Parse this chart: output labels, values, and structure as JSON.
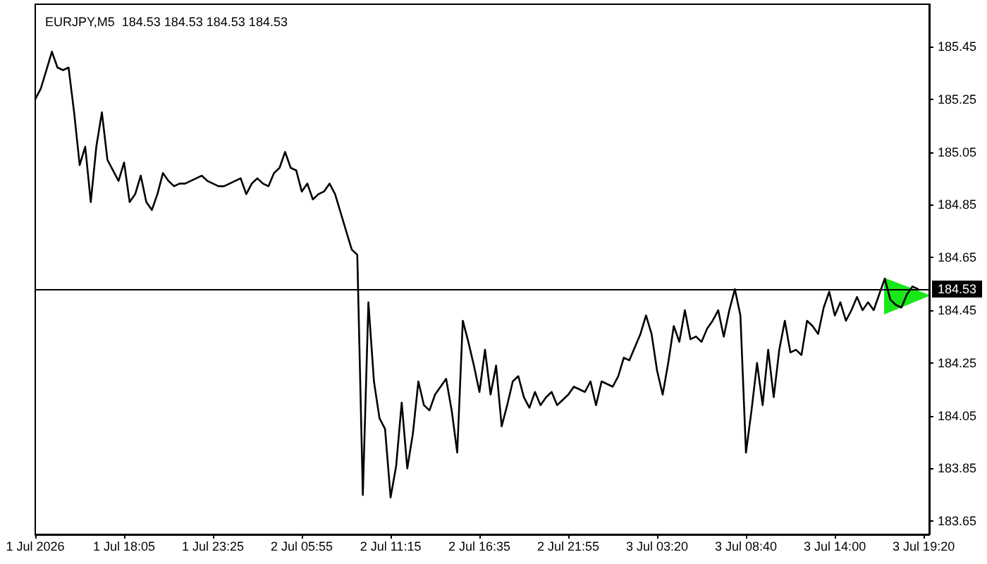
{
  "chart_data": {
    "type": "line",
    "title": "EURJPY,M5  184.53 184.53 184.53 184.53",
    "categories": [
      "1 Jul 2026",
      null,
      null,
      null,
      null,
      null,
      null,
      null,
      null,
      null,
      null,
      null,
      null,
      null,
      null,
      null,
      "1 Jul 18:05",
      null,
      null,
      null,
      null,
      null,
      null,
      null,
      null,
      null,
      null,
      null,
      null,
      null,
      null,
      null,
      "1 Jul 23:25",
      null,
      null,
      null,
      null,
      null,
      null,
      null,
      null,
      null,
      null,
      null,
      null,
      null,
      null,
      null,
      "2 Jul 05:55",
      null,
      null,
      null,
      null,
      null,
      null,
      null,
      null,
      null,
      null,
      null,
      null,
      null,
      null,
      null,
      "2 Jul 11:15",
      null,
      null,
      null,
      null,
      null,
      null,
      null,
      null,
      null,
      null,
      null,
      null,
      null,
      null,
      null,
      "2 Jul 16:35",
      null,
      null,
      null,
      null,
      null,
      null,
      null,
      null,
      null,
      null,
      null,
      null,
      null,
      null,
      null,
      "2 Jul 21:55",
      null,
      null,
      null,
      null,
      null,
      null,
      null,
      null,
      null,
      null,
      null,
      null,
      null,
      null,
      null,
      "3 Jul 03:20",
      null,
      null,
      null,
      null,
      null,
      null,
      null,
      null,
      null,
      null,
      null,
      null,
      null,
      null,
      null,
      "3 Jul 08:40",
      null,
      null,
      null,
      null,
      null,
      null,
      null,
      null,
      null,
      null,
      null,
      null,
      null,
      null,
      null,
      "3 Jul 14:00",
      null,
      null,
      null,
      null,
      null,
      null,
      null,
      null,
      null,
      null,
      null,
      null,
      null,
      null,
      null,
      "3 Jul 19:20",
      null
    ],
    "values": [
      185.25,
      185.29,
      185.36,
      185.43,
      185.37,
      185.36,
      185.37,
      185.2,
      185.0,
      185.07,
      184.86,
      185.07,
      185.2,
      185.02,
      184.98,
      184.94,
      185.01,
      184.86,
      184.89,
      184.96,
      184.86,
      184.83,
      184.89,
      184.97,
      184.94,
      184.92,
      184.93,
      184.93,
      184.94,
      184.95,
      184.96,
      184.94,
      184.93,
      184.92,
      184.92,
      184.93,
      184.94,
      184.95,
      184.89,
      184.93,
      184.95,
      184.93,
      184.92,
      184.97,
      184.99,
      185.05,
      184.99,
      184.98,
      184.9,
      184.93,
      184.87,
      184.89,
      184.9,
      184.93,
      184.89,
      184.82,
      184.75,
      184.68,
      184.66,
      183.75,
      184.48,
      184.18,
      184.04,
      184.0,
      183.74,
      183.86,
      184.1,
      183.85,
      183.98,
      184.18,
      184.09,
      184.07,
      184.13,
      184.16,
      184.19,
      184.07,
      183.91,
      184.41,
      184.33,
      184.24,
      184.14,
      184.3,
      184.13,
      184.24,
      184.01,
      184.09,
      184.18,
      184.2,
      184.12,
      184.08,
      184.14,
      184.09,
      184.12,
      184.14,
      184.09,
      184.11,
      184.13,
      184.16,
      184.15,
      184.14,
      184.18,
      184.09,
      184.18,
      184.17,
      184.16,
      184.2,
      184.27,
      184.26,
      184.31,
      184.36,
      184.43,
      184.36,
      184.22,
      184.13,
      184.25,
      184.39,
      184.33,
      184.45,
      184.34,
      184.35,
      184.33,
      184.38,
      184.41,
      184.45,
      184.35,
      184.45,
      184.53,
      184.43,
      183.91,
      184.07,
      184.25,
      184.09,
      184.3,
      184.12,
      184.3,
      184.41,
      184.29,
      184.3,
      184.28,
      184.41,
      184.39,
      184.36,
      184.46,
      184.52,
      184.43,
      184.48,
      184.41,
      184.45,
      184.5,
      184.45,
      184.48,
      184.45,
      184.51,
      184.57,
      184.49,
      184.47,
      184.46,
      184.51,
      184.54,
      184.53,
      null,
      null
    ],
    "color": "#000000",
    "ylim": [
      183.6,
      185.61
    ],
    "yticks": [
      183.65,
      183.85,
      184.05,
      184.25,
      184.45,
      184.65,
      184.85,
      185.05,
      185.25,
      185.45
    ],
    "ref_lines": [
      {
        "axis": "y",
        "value": 184.53,
        "label": "184.53",
        "color": "#000000"
      }
    ],
    "grid": false,
    "marker": "none",
    "line_style": "solid"
  }
}
